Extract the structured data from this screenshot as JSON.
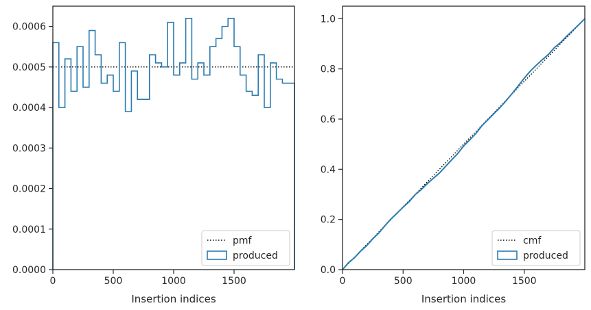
{
  "chart_data": [
    {
      "type": "line",
      "title": "",
      "xlabel": "Insertion indices",
      "ylabel": "",
      "xlim": [
        0,
        2000
      ],
      "ylim": [
        0,
        0.00065
      ],
      "xticks": [
        0,
        500,
        1000,
        1500
      ],
      "yticks": [
        0,
        0.0001,
        0.0002,
        0.0003,
        0.0004,
        0.0005,
        0.0006
      ],
      "ytick_labels": [
        "0.0000",
        "0.0001",
        "0.0002",
        "0.0003",
        "0.0004",
        "0.0005",
        "0.0006"
      ],
      "legend_position": "bottom-right",
      "grid": false,
      "series": [
        {
          "name": "pmf",
          "style": "dotted",
          "color": "#000000",
          "x": [
            0,
            2000
          ],
          "values": [
            0.0005,
            0.0005
          ]
        },
        {
          "name": "produced",
          "style": "step-histogram",
          "color": "#2b7bb0",
          "bin_width": 50,
          "bin_starts": [
            0,
            50,
            100,
            150,
            200,
            250,
            300,
            350,
            400,
            450,
            500,
            550,
            600,
            650,
            700,
            750,
            800,
            850,
            900,
            950,
            1000,
            1050,
            1100,
            1150,
            1200,
            1250,
            1300,
            1350,
            1400,
            1450,
            1500,
            1550,
            1600,
            1650,
            1700,
            1750,
            1800,
            1850,
            1900,
            1950
          ],
          "values": [
            0.00056,
            0.0004,
            0.00052,
            0.00044,
            0.00055,
            0.00045,
            0.00059,
            0.00053,
            0.00046,
            0.00048,
            0.00044,
            0.00056,
            0.00039,
            0.00049,
            0.00042,
            0.00042,
            0.00053,
            0.00051,
            0.0005,
            0.00061,
            0.00048,
            0.00051,
            0.00062,
            0.00047,
            0.00051,
            0.00048,
            0.00055,
            0.00057,
            0.0006,
            0.00062,
            0.00055,
            0.00048,
            0.00044,
            0.00043,
            0.00053,
            0.0004,
            0.00051,
            0.00047,
            0.00046,
            0.00046
          ]
        }
      ]
    },
    {
      "type": "line",
      "title": "",
      "xlabel": "Insertion indices",
      "ylabel": "",
      "xlim": [
        0,
        2000
      ],
      "ylim": [
        0,
        1.05
      ],
      "xticks": [
        0,
        500,
        1000,
        1500
      ],
      "yticks": [
        0.0,
        0.2,
        0.4,
        0.6,
        0.8,
        1.0
      ],
      "ytick_labels": [
        "0.0",
        "0.2",
        "0.4",
        "0.6",
        "0.8",
        "1.0"
      ],
      "legend_position": "bottom-right",
      "grid": false,
      "series": [
        {
          "name": "cmf",
          "style": "dotted",
          "color": "#000000",
          "x": [
            0,
            2000
          ],
          "values": [
            0.0,
            1.0
          ]
        },
        {
          "name": "produced",
          "style": "solid",
          "color": "#2b7bb0",
          "x": [
            0,
            50,
            100,
            150,
            200,
            250,
            300,
            350,
            400,
            450,
            500,
            550,
            600,
            650,
            700,
            750,
            800,
            850,
            900,
            950,
            1000,
            1050,
            1100,
            1150,
            1200,
            1250,
            1300,
            1350,
            1400,
            1450,
            1500,
            1550,
            1600,
            1650,
            1700,
            1750,
            1800,
            1850,
            1900,
            1950,
            2000
          ],
          "values": [
            0.0,
            0.028,
            0.048,
            0.074,
            0.096,
            0.123,
            0.146,
            0.175,
            0.202,
            0.225,
            0.249,
            0.271,
            0.299,
            0.319,
            0.343,
            0.364,
            0.385,
            0.411,
            0.437,
            0.462,
            0.493,
            0.517,
            0.542,
            0.573,
            0.597,
            0.622,
            0.646,
            0.673,
            0.702,
            0.732,
            0.763,
            0.791,
            0.815,
            0.837,
            0.858,
            0.885,
            0.905,
            0.93,
            0.953,
            0.976,
            1.0
          ]
        }
      ]
    }
  ]
}
